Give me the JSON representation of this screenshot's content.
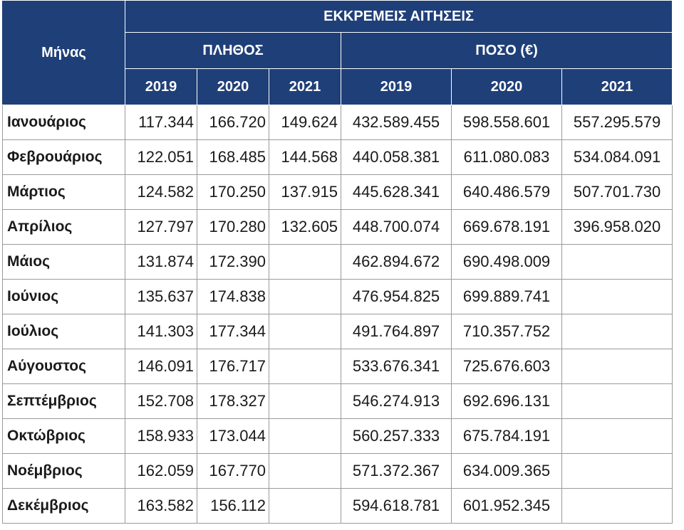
{
  "table": {
    "title": "ΕΚΚΡΕΜΕΙΣ ΑΙΤΗΣΕΙΣ",
    "month_header": "Μήνας",
    "group_count": "ΠΛΗΘΟΣ",
    "group_amount": "ΠΟΣΟ (€)",
    "years": [
      "2019",
      "2020",
      "2021"
    ],
    "rows": [
      {
        "month": "Ιανουάριος",
        "count": [
          "117.344",
          "166.720",
          "149.624"
        ],
        "amount": [
          "432.589.455",
          "598.558.601",
          "557.295.579"
        ]
      },
      {
        "month": "Φεβρουάριος",
        "count": [
          "122.051",
          "168.485",
          "144.568"
        ],
        "amount": [
          "440.058.381",
          "611.080.083",
          "534.084.091"
        ]
      },
      {
        "month": "Μάρτιος",
        "count": [
          "124.582",
          "170.250",
          "137.915"
        ],
        "amount": [
          "445.628.341",
          "640.486.579",
          "507.701.730"
        ]
      },
      {
        "month": "Απρίλιος",
        "count": [
          "127.797",
          "170.280",
          "132.605"
        ],
        "amount": [
          "448.700.074",
          "669.678.191",
          "396.958.020"
        ]
      },
      {
        "month": "Μάιος",
        "count": [
          "131.874",
          "172.390",
          ""
        ],
        "amount": [
          "462.894.672",
          "690.498.009",
          ""
        ]
      },
      {
        "month": "Ιούνιος",
        "count": [
          "135.637",
          "174.838",
          ""
        ],
        "amount": [
          "476.954.825",
          "699.889.741",
          ""
        ]
      },
      {
        "month": "Ιούλιος",
        "count": [
          "141.303",
          "177.344",
          ""
        ],
        "amount": [
          "491.764.897",
          "710.357.752",
          ""
        ]
      },
      {
        "month": "Αύγουστος",
        "count": [
          "146.091",
          "176.717",
          ""
        ],
        "amount": [
          "533.676.341",
          "725.676.603",
          ""
        ]
      },
      {
        "month": "Σεπτέμβριος",
        "count": [
          "152.708",
          "178.327",
          ""
        ],
        "amount": [
          "546.274.913",
          "692.696.131",
          ""
        ]
      },
      {
        "month": "Οκτώβριος",
        "count": [
          "158.933",
          "173.044",
          ""
        ],
        "amount": [
          "560.257.333",
          "675.784.191",
          ""
        ]
      },
      {
        "month": "Νοέμβριος",
        "count": [
          "162.059",
          "167.770",
          ""
        ],
        "amount": [
          "571.372.367",
          "634.009.365",
          ""
        ]
      },
      {
        "month": "Δεκέμβριος",
        "count": [
          "163.582",
          "156.112",
          ""
        ],
        "amount": [
          "594.618.781",
          "601.952.345",
          ""
        ]
      }
    ]
  }
}
